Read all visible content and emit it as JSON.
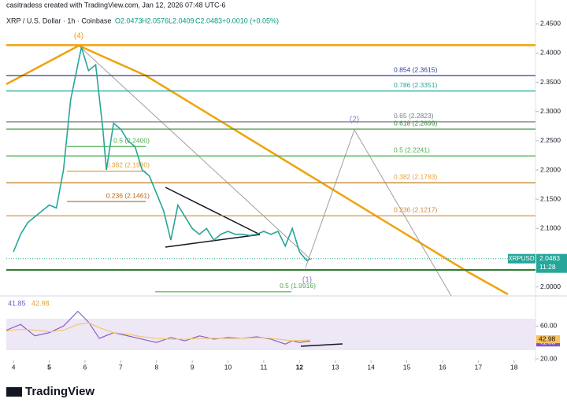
{
  "header": {
    "credit": "casitradess created with TradingView.com, Jan 12, 2026 07:48 UTC-6",
    "symbol": "XRP / U.S. Dollar · 1h · Coinbase",
    "ohlc": [
      "O2.0473",
      "H2.0576",
      "L2.0409",
      "C2.0483"
    ],
    "change": "+0.0010 (+0.05%)",
    "price_tag": {
      "symbol": "XRPUSD",
      "price": "2.0483",
      "countdown": "11:28"
    },
    "rsi_legend": [
      "41.85",
      "42.98"
    ],
    "brand": "TradingView"
  },
  "chart_data": [
    {
      "type": "line",
      "x": [
        4.0,
        4.2,
        4.4,
        4.6,
        4.8,
        5.0,
        5.2,
        5.4,
        5.6,
        5.8,
        5.9,
        6.0,
        6.1,
        6.3,
        6.5,
        6.6,
        6.8,
        7.0,
        7.2,
        7.4,
        7.6,
        7.8,
        8.0,
        8.2,
        8.4,
        8.6,
        8.8,
        9.0,
        9.2,
        9.4,
        9.6,
        9.8,
        10.0,
        10.2,
        10.4,
        10.6,
        10.8,
        11.0,
        11.2,
        11.4,
        11.6,
        11.8,
        12.0,
        12.2,
        12.3
      ],
      "series": [
        {
          "name": "XRPUSD",
          "color": "#26a69a",
          "values": [
            2.06,
            2.09,
            2.11,
            2.12,
            2.13,
            2.14,
            2.135,
            2.2,
            2.32,
            2.38,
            2.41,
            2.39,
            2.37,
            2.38,
            2.27,
            2.2,
            2.28,
            2.27,
            2.25,
            2.24,
            2.2,
            2.19,
            2.16,
            2.13,
            2.08,
            2.14,
            2.12,
            2.1,
            2.09,
            2.1,
            2.08,
            2.09,
            2.095,
            2.09,
            2.09,
            2.088,
            2.09,
            2.095,
            2.09,
            2.095,
            2.07,
            2.1,
            2.06,
            2.045,
            2.0483
          ]
        }
      ],
      "xlim": [
        3.8,
        18.6
      ],
      "xticks": [
        4,
        5,
        6,
        7,
        8,
        9,
        10,
        11,
        12,
        13,
        14,
        15,
        16,
        17,
        18
      ],
      "ylim": [
        1.99,
        2.48
      ],
      "yticks": [
        {
          "value": 2.45,
          "label": "2.4500"
        },
        {
          "value": 2.4,
          "label": "2.4000"
        },
        {
          "value": 2.35,
          "label": "2.3500"
        },
        {
          "value": 2.3,
          "label": "2.3000"
        },
        {
          "value": 2.25,
          "label": "2.2500"
        },
        {
          "value": 2.2,
          "label": "2.2000"
        },
        {
          "value": 2.15,
          "label": "2.1500"
        },
        {
          "value": 2.1,
          "label": "2.1000"
        },
        {
          "value": 2.0,
          "label": "2.0000"
        }
      ],
      "last_price": 2.0483,
      "fib_levels": [
        {
          "label": "0.854 (2.3615)",
          "value": 2.3615,
          "color": "#2a3f9e"
        },
        {
          "label": "0.786 (2.3351)",
          "value": 2.3351,
          "color": "#26a69a"
        },
        {
          "label": "0.65 (2.2823)",
          "value": 2.2823,
          "color": "#787b86"
        },
        {
          "label": "0.618 (2.2699)",
          "value": 2.2699,
          "color": "#388e3c"
        },
        {
          "label": "0.5 (2.2241)",
          "value": 2.2241,
          "color": "#4caf50"
        },
        {
          "label": "0.382 (2.1783)",
          "value": 2.1783,
          "color": "#e6a23c"
        },
        {
          "label": "0.236 (2.1217)",
          "value": 2.1217,
          "color": "#d4883a"
        },
        {
          "label": "0.5 (2.2400)",
          "value": 2.24,
          "color": "#4caf50"
        },
        {
          "label": "0.382 (2.1980)",
          "value": 2.198,
          "color": "#e6a23c"
        },
        {
          "label": "0.236 (2.1461)",
          "value": 2.1461,
          "color": "#b5651d"
        },
        {
          "label": "0.5 (1.9916)",
          "value": 1.9916,
          "color": "#4caf50"
        }
      ],
      "horizontal_lines": [
        {
          "value": 2.4135,
          "color": "#f0a30a"
        },
        {
          "value": 2.178,
          "color": "#1e3a8a"
        },
        {
          "value": 2.029,
          "color": "#2e7d32"
        }
      ],
      "wave_labels": [
        {
          "label": "(4)",
          "color": "#e39a1e"
        },
        {
          "label": "(2)",
          "color": "#8e7cc3"
        },
        {
          "label": "(1)",
          "color": "#8e7cc3"
        }
      ]
    },
    {
      "type": "line",
      "x": [
        3.8,
        4.2,
        4.6,
        5.0,
        5.4,
        5.8,
        6.1,
        6.4,
        6.8,
        7.2,
        7.6,
        8.0,
        8.4,
        8.8,
        9.2,
        9.6,
        10.0,
        10.4,
        10.8,
        11.2,
        11.6,
        11.8,
        12.0,
        12.3
      ],
      "series": [
        {
          "name": "RSI",
          "color": "#7e57c2",
          "values": [
            55,
            62,
            48,
            52,
            60,
            78,
            65,
            45,
            52,
            48,
            44,
            40,
            46,
            42,
            48,
            44,
            46,
            45,
            47,
            44,
            38,
            42,
            40,
            41.85
          ],
          "value_labels": [
            null,
            null,
            null,
            null,
            null,
            null,
            null,
            null,
            null,
            null,
            null,
            null,
            null,
            null,
            null,
            null,
            null,
            null,
            null,
            null,
            null,
            null,
            null,
            "41.85"
          ]
        },
        {
          "name": "RSI MA",
          "color": "#f7c35f",
          "values": [
            54,
            56,
            55,
            53,
            55,
            62,
            64,
            58,
            52,
            50,
            47,
            45,
            44,
            44,
            45,
            45,
            45,
            45,
            46,
            45,
            43,
            42,
            42.5,
            42.98
          ],
          "value_labels": [
            null,
            null,
            null,
            null,
            null,
            null,
            null,
            null,
            null,
            null,
            null,
            null,
            null,
            null,
            null,
            null,
            null,
            null,
            null,
            null,
            null,
            null,
            null,
            "42.98"
          ]
        }
      ],
      "xlim": [
        3.8,
        18.6
      ],
      "ylim": [
        20,
        93
      ],
      "yticks": [
        {
          "value": 60,
          "label": "60.00"
        },
        {
          "value": 20,
          "label": "20.00"
        }
      ]
    }
  ]
}
